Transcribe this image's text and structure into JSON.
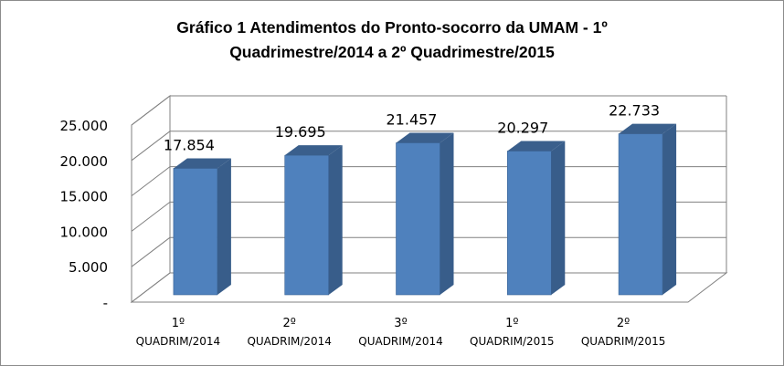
{
  "chart_data": {
    "type": "bar",
    "style": "3d-column",
    "title_lines": [
      "Gráfico 1 Atendimentos do Pronto-socorro  da UMAM - 1º",
      "Quadrimestre/2014 a 2º Quadrimestre/2015"
    ],
    "categories": [
      [
        "1º",
        "QUADRIM/2014"
      ],
      [
        "2º",
        "QUADRIM/2014"
      ],
      [
        "3º",
        "QUADRIM/2014"
      ],
      [
        "1º",
        "QUADRIM/2015"
      ],
      [
        "2º",
        "QUADRIM/2015"
      ]
    ],
    "values": [
      17854,
      19695,
      21457,
      20297,
      22733
    ],
    "value_labels": [
      "17.854",
      "19.695",
      "21.457",
      "20.297",
      "22.733"
    ],
    "y_ticks": [
      0,
      5000,
      10000,
      15000,
      20000,
      25000
    ],
    "y_tick_labels": [
      "-",
      "5.000",
      "10.000",
      "15.000",
      "20.000",
      "25.000"
    ],
    "ylim": [
      0,
      25000
    ],
    "grid": true,
    "legend": "none",
    "colors": {
      "bar_front": "#4f81bd",
      "bar_side": "#385d8a",
      "bar_top": "#3a5f8c",
      "grid": "#808080"
    }
  }
}
